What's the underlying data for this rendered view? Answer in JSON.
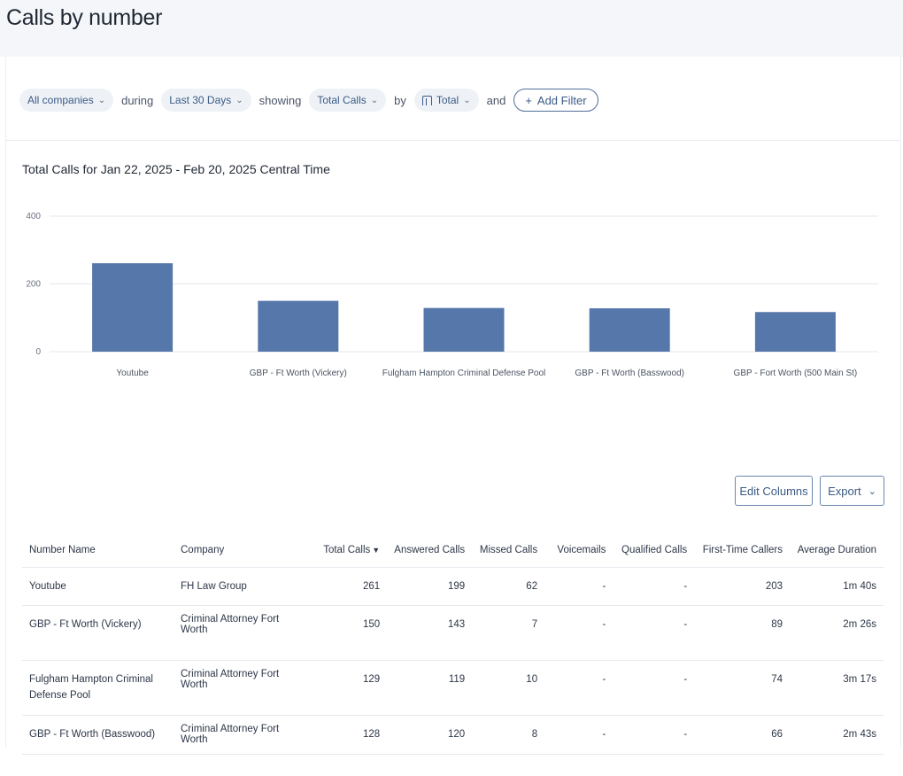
{
  "page": {
    "title": "Calls by number"
  },
  "filters": {
    "company": "All companies",
    "during_label": "during",
    "date_range": "Last 30 Days",
    "showing_label": "showing",
    "metric": "Total Calls",
    "by_label": "by",
    "grouping": "Total",
    "and_label": "and",
    "add_filter": "Add Filter"
  },
  "chart_title": "Total Calls for Jan 22, 2025 - Feb 20, 2025 Central Time",
  "chart_data": {
    "type": "bar",
    "categories": [
      "Youtube",
      "GBP - Ft Worth (Vickery)",
      "Fulgham Hampton Criminal Defense Pool",
      "GBP - Ft Worth (Basswood)",
      "GBP - Fort Worth (500 Main St)"
    ],
    "values": [
      261,
      150,
      129,
      128,
      117
    ],
    "yticks": [
      0,
      200,
      400
    ],
    "ylim": [
      0,
      400
    ],
    "color": "#5677aa",
    "grid": true
  },
  "toolbar": {
    "edit_columns": "Edit Columns",
    "export": "Export"
  },
  "table": {
    "headers": {
      "number_name": "Number Name",
      "company": "Company",
      "total_calls": "Total Calls",
      "answered": "Answered Calls",
      "missed": "Missed Calls",
      "voicemails": "Voicemails",
      "qualified": "Qualified Calls",
      "first_time": "First-Time Callers",
      "avg_duration": "Average Duration"
    },
    "rows": [
      {
        "name": "Youtube",
        "company": "FH Law Group",
        "total": "261",
        "answered": "199",
        "missed": "62",
        "voicemails": "-",
        "qualified": "-",
        "first_time": "203",
        "duration": "1m 40s"
      },
      {
        "name": "GBP - Ft Worth (Vickery)",
        "company": "Criminal Attorney Fort Worth",
        "total": "150",
        "answered": "143",
        "missed": "7",
        "voicemails": "-",
        "qualified": "-",
        "first_time": "89",
        "duration": "2m 26s"
      },
      {
        "name": "Fulgham Hampton Criminal Defense Pool",
        "company": "Criminal Attorney Fort Worth",
        "total": "129",
        "answered": "119",
        "missed": "10",
        "voicemails": "-",
        "qualified": "-",
        "first_time": "74",
        "duration": "3m 17s"
      },
      {
        "name": "GBP - Ft Worth (Basswood)",
        "company": "Criminal Attorney Fort Worth",
        "total": "128",
        "answered": "120",
        "missed": "8",
        "voicemails": "-",
        "qualified": "-",
        "first_time": "66",
        "duration": "2m 43s"
      }
    ]
  }
}
